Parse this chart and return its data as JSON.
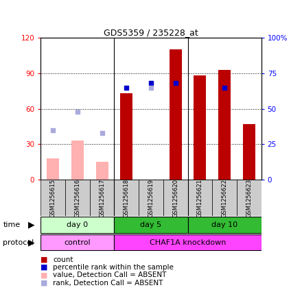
{
  "title": "GDS5359 / 235228_at",
  "samples": [
    "GSM1256615",
    "GSM1256616",
    "GSM1256617",
    "GSM1256618",
    "GSM1256619",
    "GSM1256620",
    "GSM1256621",
    "GSM1256622",
    "GSM1256623"
  ],
  "count_values": [
    null,
    null,
    null,
    73,
    null,
    110,
    88,
    93,
    47
  ],
  "count_absent": [
    18,
    33,
    15,
    null,
    null,
    null,
    null,
    null,
    null
  ],
  "rank_values": [
    null,
    null,
    null,
    65,
    68,
    68,
    null,
    65,
    null
  ],
  "rank_absent": [
    35,
    48,
    33,
    null,
    65,
    null,
    null,
    null,
    null
  ],
  "count_color": "#BB0000",
  "count_absent_color": "#FFB0B0",
  "rank_color": "#0000CC",
  "rank_absent_color": "#AAAADD",
  "ylim_left": [
    0,
    120
  ],
  "ylim_right": [
    0,
    100
  ],
  "yticks_left": [
    0,
    30,
    60,
    90,
    120
  ],
  "yticks_right": [
    0,
    25,
    50,
    75,
    100
  ],
  "ytick_labels_right": [
    "0",
    "25",
    "50",
    "75",
    "100%"
  ],
  "time_groups": [
    {
      "label": "day 0",
      "start": 0,
      "end": 3,
      "color": "#CCFFCC"
    },
    {
      "label": "day 5",
      "start": 3,
      "end": 6,
      "color": "#44CC44"
    },
    {
      "label": "day 10",
      "start": 6,
      "end": 9,
      "color": "#44CC44"
    }
  ],
  "protocol_groups": [
    {
      "label": "control",
      "start": 0,
      "end": 3,
      "color": "#FF99FF"
    },
    {
      "label": "CHAF1A knockdown",
      "start": 3,
      "end": 9,
      "color": "#FF44FF"
    }
  ],
  "legend_items": [
    {
      "color": "#BB0000",
      "label": "count"
    },
    {
      "color": "#0000CC",
      "label": "percentile rank within the sample"
    },
    {
      "color": "#FFB0B0",
      "label": "value, Detection Call = ABSENT"
    },
    {
      "color": "#AAAADD",
      "label": "rank, Detection Call = ABSENT"
    }
  ],
  "group_boundaries": [
    2.5,
    5.5
  ],
  "bar_width": 0.5
}
